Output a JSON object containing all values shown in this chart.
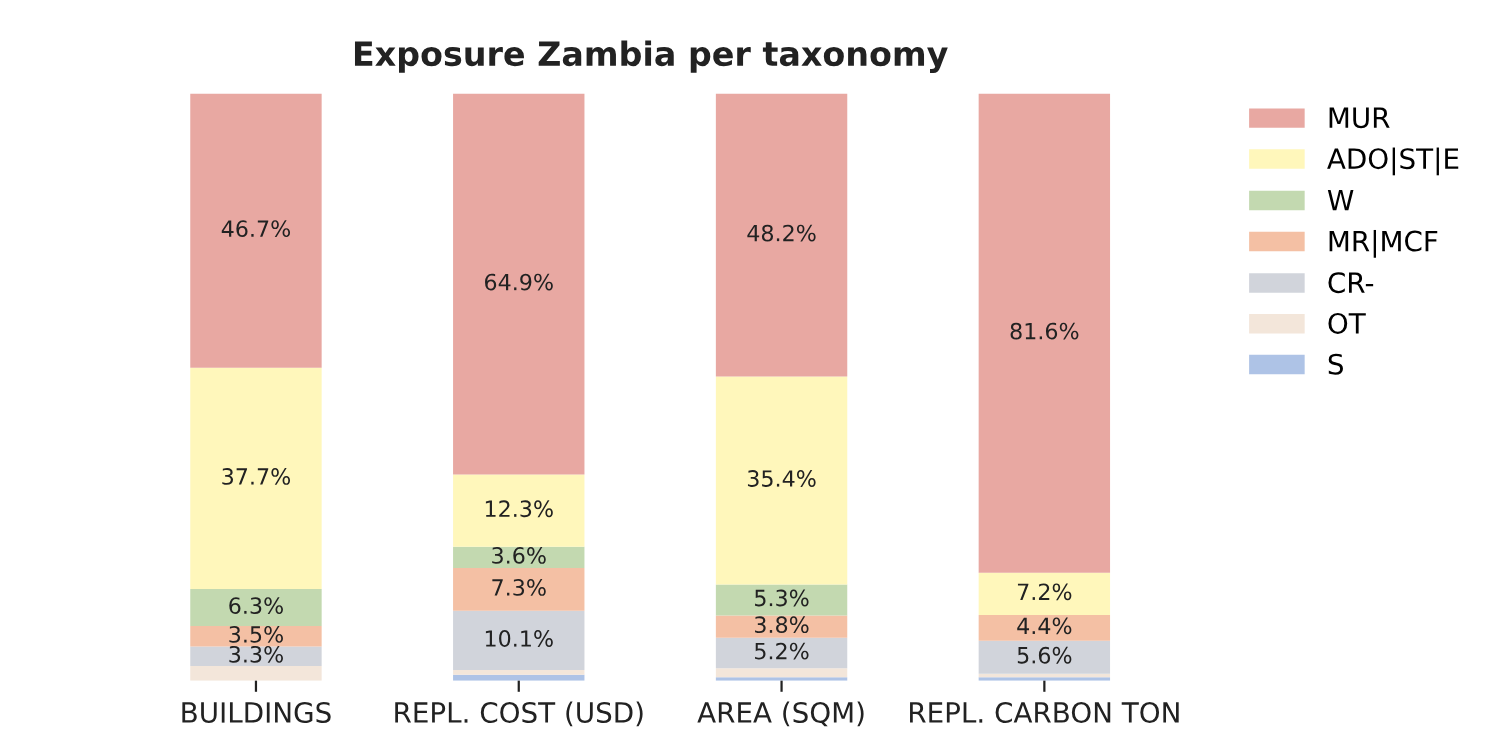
{
  "chart_data": {
    "type": "bar",
    "title": "Exposure Zambia per taxonomy",
    "stacked": true,
    "legend": "top right",
    "grid": false,
    "categories": [
      "BUILDINGS",
      "REPL. COST (USD)",
      "AREA (SQM)",
      "REPL. CARBON TON"
    ],
    "series": [
      {
        "name": "S",
        "color": "#aec3e6",
        "values": [
          0,
          1.0,
          0.6,
          0.6
        ],
        "value_labels": [
          null,
          null,
          null,
          null
        ]
      },
      {
        "name": "OT",
        "color": "#f3e6da",
        "values": [
          2.5,
          0.8,
          1.5,
          0.6
        ],
        "value_labels": [
          null,
          null,
          null,
          null
        ]
      },
      {
        "name": "CR-",
        "color": "#d1d4db",
        "values": [
          3.3,
          10.1,
          5.2,
          5.6
        ],
        "value_labels": [
          "3.3%",
          "10.1%",
          "5.2%",
          "5.6%"
        ]
      },
      {
        "name": "MR|MCF",
        "color": "#f4c0a4",
        "values": [
          3.5,
          7.3,
          3.8,
          4.4
        ],
        "value_labels": [
          "3.5%",
          "7.3%",
          "3.8%",
          "4.4%"
        ]
      },
      {
        "name": "W",
        "color": "#c3d9b0",
        "values": [
          6.3,
          3.6,
          5.3,
          0
        ],
        "value_labels": [
          "6.3%",
          "3.6%",
          "5.3%",
          null
        ]
      },
      {
        "name": "ADO|ST|E",
        "color": "#fff7bb",
        "values": [
          37.7,
          12.3,
          35.4,
          7.2
        ],
        "value_labels": [
          "37.7%",
          "12.3%",
          "35.4%",
          "7.2%"
        ]
      },
      {
        "name": "MUR",
        "color": "#e8a8a2",
        "values": [
          46.7,
          64.9,
          48.2,
          81.6
        ],
        "value_labels": [
          "46.7%",
          "64.9%",
          "48.2%",
          "81.6%"
        ]
      }
    ]
  }
}
